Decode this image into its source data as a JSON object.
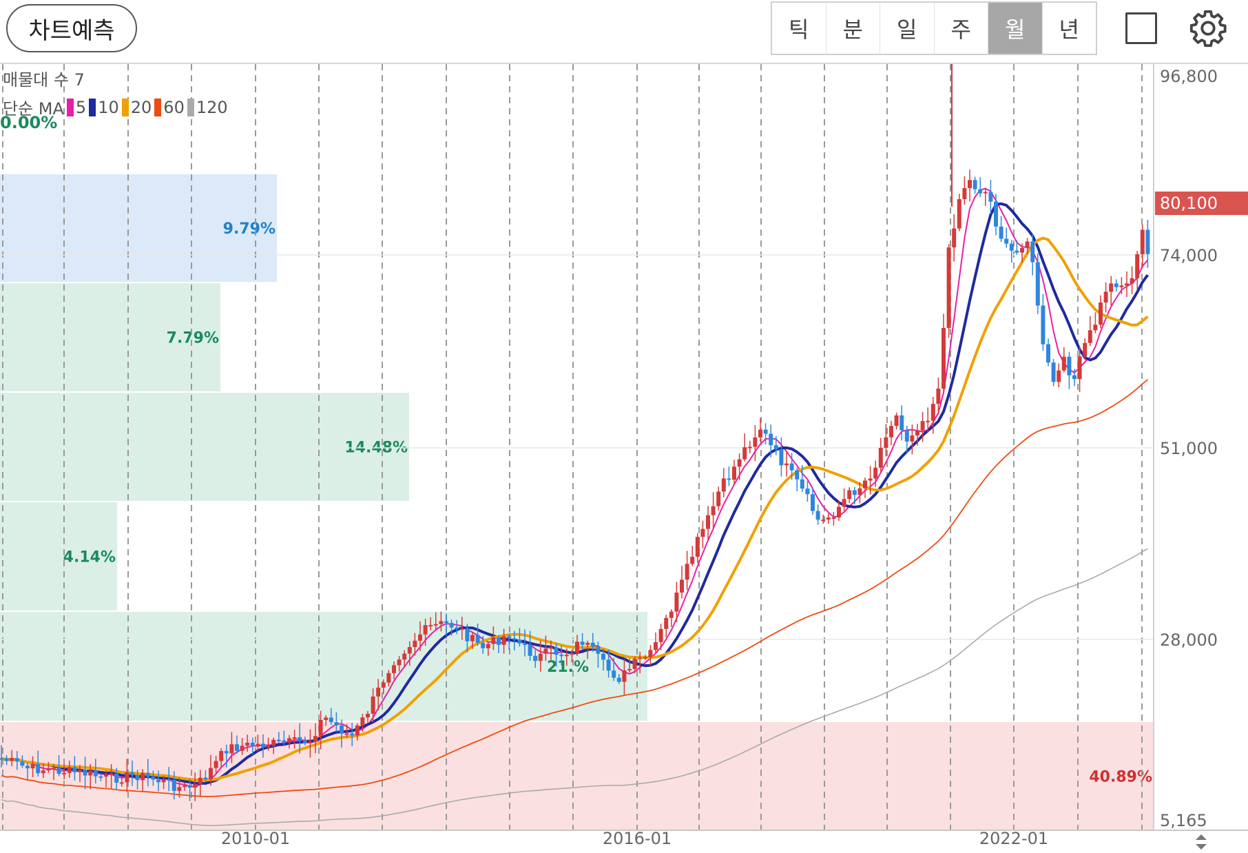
{
  "header": {
    "predict_label": "차트예측",
    "periods": [
      {
        "label": "틱",
        "active": false
      },
      {
        "label": "분",
        "active": false
      },
      {
        "label": "일",
        "active": false
      },
      {
        "label": "주",
        "active": false
      },
      {
        "label": "월",
        "active": true
      },
      {
        "label": "년",
        "active": false
      }
    ],
    "square_icon": "square-icon",
    "settings_icon": "gear-icon"
  },
  "legend": {
    "volume_profile_label": "매물대 수 7",
    "ma_label": "단순 MA",
    "ma_items": [
      {
        "period": "5",
        "color": "#e91ea8"
      },
      {
        "period": "10",
        "color": "#1f2a9e"
      },
      {
        "period": "20",
        "color": "#f0a000"
      },
      {
        "period": "60",
        "color": "#f04a10"
      },
      {
        "period": "120",
        "color": "#aaaaaa"
      }
    ],
    "top_zone_percent": "0.00%"
  },
  "chart_data": {
    "type": "candlestick",
    "y_axis_ticks": [
      "96,800",
      "74,000",
      "51,000",
      "28,000",
      "5,165"
    ],
    "x_axis_ticks": [
      "2010-01",
      "2016-01",
      "2022-01"
    ],
    "last_price": "80,100",
    "volume_profile": [
      {
        "percent": "9.79%",
        "color": "#dbe9f8",
        "label_color": "#2080d0"
      },
      {
        "percent": "7.79%",
        "color": "#dbefe7",
        "label_color": "#1a8a5c"
      },
      {
        "percent": "14.48%",
        "color": "#dbefe7",
        "label_color": "#1a8a5c"
      },
      {
        "percent": "4.14%",
        "color": "#dbefe7",
        "label_color": "#1a8a5c"
      },
      {
        "percent": "21.%",
        "color": "#dbefe7",
        "label_color": "#1a8a5c"
      },
      {
        "percent": "40.89%",
        "color": "#fae0e0",
        "label_color": "#d03030"
      }
    ],
    "colors": {
      "up": "#d43a3a",
      "down": "#2e86de"
    }
  }
}
